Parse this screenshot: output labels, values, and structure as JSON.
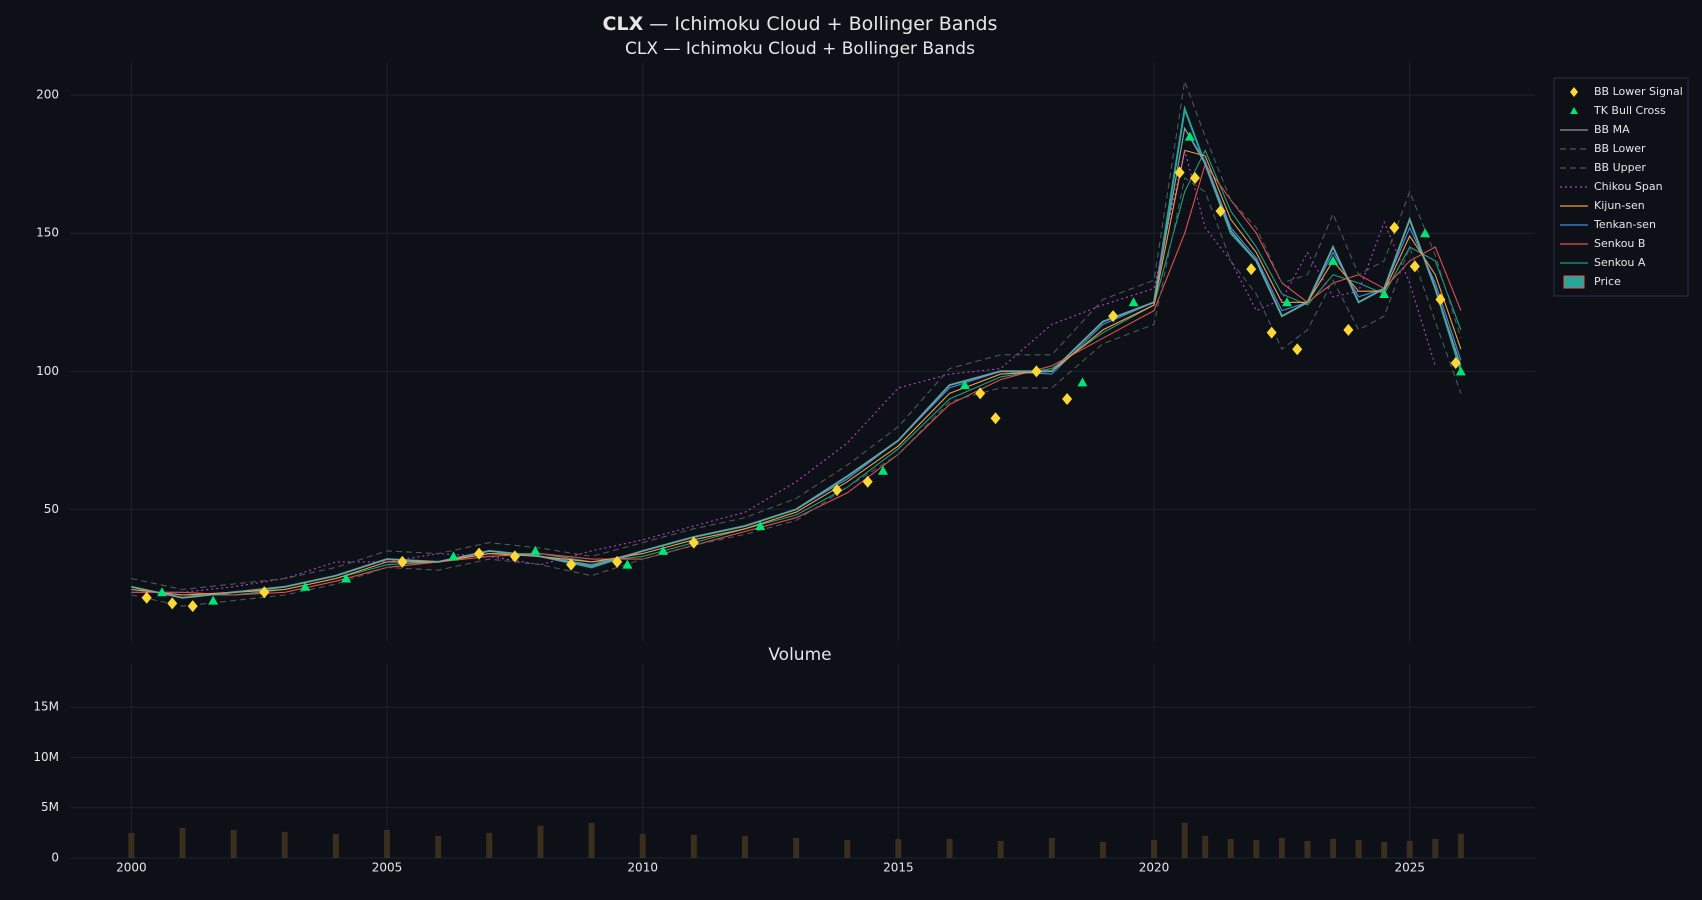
{
  "header": {
    "ticker": "CLX",
    "title_rest": "— Ichimoku Cloud + Bollinger Bands"
  },
  "chart_data": [
    {
      "type": "line",
      "title": "CLX — Ichimoku Cloud + Bollinger Bands",
      "x": [
        2000,
        2001,
        2002,
        2003,
        2004,
        2005,
        2006,
        2007,
        2008,
        2009,
        2010,
        2011,
        2012,
        2013,
        2014,
        2015,
        2016,
        2017,
        2018,
        2019,
        2020,
        2020.6,
        2021,
        2021.5,
        2022,
        2022.5,
        2023,
        2023.5,
        2024,
        2024.5,
        2025,
        2025.5,
        2026
      ],
      "xlim": [
        1998.8,
        2027.45
      ],
      "xticks": [
        2000,
        2005,
        2010,
        2015,
        2020,
        2025
      ],
      "ylim": [
        2,
        212
      ],
      "yticks": [
        50,
        100,
        150,
        200
      ],
      "grid": true,
      "legend": "top-right",
      "series": [
        {
          "name": "BB Lower Signal",
          "mode": "markers",
          "marker": "diamond",
          "color": "#fdd835",
          "x": [
            2000.3,
            2000.8,
            2001.2,
            2002.6,
            2005.3,
            2006.8,
            2007.5,
            2008.6,
            2009.5,
            2011,
            2013.8,
            2014.4,
            2016.6,
            2016.9,
            2017.7,
            2018.3,
            2019.2,
            2020.5,
            2020.8,
            2021.3,
            2021.9,
            2022.3,
            2022.8,
            2023.8,
            2024.7,
            2025.1,
            2025.6,
            2025.9
          ],
          "values": [
            18,
            16,
            15,
            20,
            31,
            34,
            33,
            30,
            31,
            38,
            57,
            60,
            92,
            83,
            100,
            90,
            120,
            172,
            170,
            158,
            137,
            114,
            108,
            115,
            152,
            138,
            126,
            103
          ]
        },
        {
          "name": "TK Bull Cross",
          "mode": "markers",
          "marker": "triangle",
          "color": "#00e676",
          "x": [
            2000.6,
            2001.6,
            2003.4,
            2004.2,
            2006.3,
            2007.9,
            2009.7,
            2010.4,
            2012.3,
            2014.7,
            2016.3,
            2018.6,
            2019.6,
            2020.7,
            2022.6,
            2023.5,
            2024.5,
            2025.3,
            2026
          ],
          "values": [
            20,
            17,
            22,
            25,
            33,
            35,
            30,
            35,
            44,
            64,
            95,
            96,
            125,
            185,
            125,
            140,
            128,
            150,
            100
          ]
        },
        {
          "name": "BB MA",
          "mode": "lines",
          "dash": "solid",
          "color": "#8a9a9a",
          "values": [
            22,
            18,
            20,
            22,
            26,
            32,
            31,
            35,
            33,
            29.5,
            35,
            40,
            44,
            50,
            62,
            75,
            95,
            100,
            100,
            118,
            125,
            188,
            175,
            151,
            140,
            120,
            125,
            145,
            125,
            130,
            155,
            130,
            102
          ]
        },
        {
          "name": "BB Lower",
          "mode": "lines",
          "dash": "dash",
          "color": "#4a5a5a",
          "values": [
            19,
            15,
            17,
            19,
            23,
            29,
            28,
            32,
            30,
            26,
            32,
            37,
            41,
            46,
            58,
            70,
            89,
            94,
            94,
            110,
            117,
            170,
            165,
            140,
            128,
            108,
            115,
            133,
            115,
            120,
            145,
            118,
            92
          ]
        },
        {
          "name": "BB Upper",
          "mode": "lines",
          "dash": "dash",
          "color": "#4a5a5a",
          "values": [
            25,
            21,
            23,
            25,
            29,
            35,
            34,
            38,
            36,
            33,
            38,
            43,
            47,
            54,
            66,
            80,
            101,
            106,
            106,
            126,
            133,
            205,
            185,
            162,
            152,
            132,
            135,
            157,
            135,
            140,
            165,
            142,
            112
          ]
        },
        {
          "name": "Chikou Span",
          "mode": "lines",
          "dash": "dot",
          "color": "#c040d0",
          "values": [
            20,
            20,
            22,
            25,
            31,
            31,
            34,
            33,
            30,
            35,
            39,
            44,
            49,
            60,
            74,
            94,
            99,
            101,
            117,
            124,
            130,
            180,
            152,
            140,
            122,
            126,
            143,
            127,
            129,
            154,
            132,
            102,
            null
          ]
        },
        {
          "name": "Kijun-sen",
          "mode": "lines",
          "dash": "solid",
          "color": "#f0a040",
          "values": [
            21,
            19,
            20,
            21,
            25,
            31,
            31,
            34,
            33,
            31,
            34,
            39,
            43,
            49,
            60,
            73,
            92,
            99,
            100,
            115,
            124,
            180,
            178,
            155,
            143,
            125,
            125,
            140,
            129,
            129,
            149,
            135,
            108
          ]
        },
        {
          "name": "Tenkan-sen",
          "mode": "lines",
          "dash": "solid",
          "color": "#4090e0",
          "values": [
            22,
            18,
            20,
            22,
            26,
            32,
            31,
            35,
            33,
            30,
            35,
            40,
            44,
            50,
            61,
            75,
            94,
            100,
            99,
            117,
            125,
            188,
            176,
            152,
            141,
            122,
            125,
            143,
            127,
            130,
            152,
            132,
            104
          ]
        },
        {
          "name": "Senkou B",
          "mode": "lines",
          "dash": "solid",
          "color": "#e05050",
          "values": [
            20,
            20,
            19,
            20,
            24,
            29,
            31,
            33,
            34,
            32,
            32,
            37,
            42,
            47,
            56,
            70,
            88,
            97,
            102,
            112,
            122,
            150,
            175,
            162,
            150,
            132,
            125,
            132,
            135,
            130,
            140,
            145,
            122
          ]
        },
        {
          "name": "Senkou A",
          "mode": "lines",
          "dash": "solid",
          "color": "#20a080",
          "values": [
            21,
            19,
            19,
            21,
            25,
            30,
            31,
            34,
            34,
            31,
            33,
            38,
            43,
            48,
            58,
            72,
            90,
            98,
            101,
            114,
            124,
            165,
            180,
            158,
            145,
            128,
            124,
            135,
            132,
            128,
            145,
            140,
            115
          ]
        },
        {
          "name": "Price",
          "mode": "lines",
          "dash": "solid",
          "color": "#26a69a",
          "values": [
            22,
            18,
            20,
            22,
            26,
            32,
            31,
            35,
            33,
            29,
            35,
            40,
            44,
            50,
            62,
            75,
            95,
            100,
            100,
            118,
            125,
            195,
            175,
            150,
            140,
            120,
            125,
            145,
            125,
            130,
            155,
            130,
            100
          ]
        }
      ]
    },
    {
      "type": "bar",
      "title": "Volume",
      "x": [
        2000,
        2001,
        2002,
        2003,
        2004,
        2005,
        2006,
        2007,
        2008,
        2009,
        2010,
        2011,
        2012,
        2013,
        2014,
        2015,
        2016,
        2017,
        2018,
        2019,
        2020,
        2020.6,
        2021,
        2021.5,
        2022,
        2022.5,
        2023,
        2023.5,
        2024,
        2024.5,
        2025,
        2025.5,
        2026
      ],
      "values": [
        2500000,
        3000000,
        2800000,
        2600000,
        2400000,
        2800000,
        2200000,
        2500000,
        3200000,
        3500000,
        2400000,
        2300000,
        2200000,
        2000000,
        1800000,
        1900000,
        1900000,
        1700000,
        2000000,
        1600000,
        1800000,
        3500000,
        2200000,
        1900000,
        1800000,
        2000000,
        1700000,
        1900000,
        1800000,
        1600000,
        1700000,
        1900000,
        2400000
      ],
      "color": "#3a2e1c",
      "xlim": [
        1998.8,
        2027.45
      ],
      "xticks": [
        2000,
        2005,
        2010,
        2015,
        2020,
        2025
      ],
      "ylim": [
        0,
        19300000
      ],
      "yticks": [
        0,
        {
          "value": 5000000,
          "label": "5M"
        },
        {
          "value": 10000000,
          "label": "10M"
        },
        {
          "value": 15000000,
          "label": "15M"
        }
      ],
      "grid": true
    }
  ]
}
